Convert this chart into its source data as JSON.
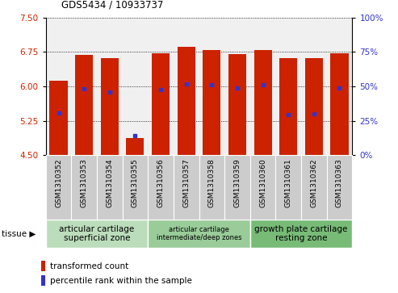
{
  "title": "GDS5434 / 10933737",
  "samples": [
    "GSM1310352",
    "GSM1310353",
    "GSM1310354",
    "GSM1310355",
    "GSM1310356",
    "GSM1310357",
    "GSM1310358",
    "GSM1310359",
    "GSM1310360",
    "GSM1310361",
    "GSM1310362",
    "GSM1310363"
  ],
  "bar_values": [
    6.12,
    6.68,
    6.62,
    4.88,
    6.72,
    6.87,
    6.8,
    6.7,
    6.8,
    6.62,
    6.62,
    6.72
  ],
  "percentile_values": [
    5.42,
    5.95,
    5.87,
    4.93,
    5.93,
    6.05,
    6.03,
    5.97,
    6.03,
    5.38,
    5.4,
    5.97
  ],
  "bar_bottom": 4.5,
  "ylim": [
    4.5,
    7.5
  ],
  "yticks_left": [
    4.5,
    5.25,
    6.0,
    6.75,
    7.5
  ],
  "yticks_right_vals": [
    0,
    25,
    50,
    75,
    100
  ],
  "bar_color": "#cc2200",
  "percentile_color": "#3333cc",
  "tissue_groups": [
    {
      "label": "articular cartilage\nsuperficial zone",
      "start": 0,
      "end": 4,
      "fontsize": 7.5
    },
    {
      "label": "articular cartilage\nintermediate/deep zones",
      "start": 4,
      "end": 8,
      "fontsize": 6.0
    },
    {
      "label": "growth plate cartilage\nresting zone",
      "start": 8,
      "end": 12,
      "fontsize": 7.5
    }
  ],
  "tissue_group_color": "#aaddaa",
  "tissue_label": "tissue",
  "legend_red": "transformed count",
  "legend_blue": "percentile rank within the sample",
  "tick_label_color_left": "#cc2200",
  "tick_label_color_right": "#3333cc",
  "plot_bg_color": "#f0f0f0",
  "bar_box_color": "#cccccc"
}
